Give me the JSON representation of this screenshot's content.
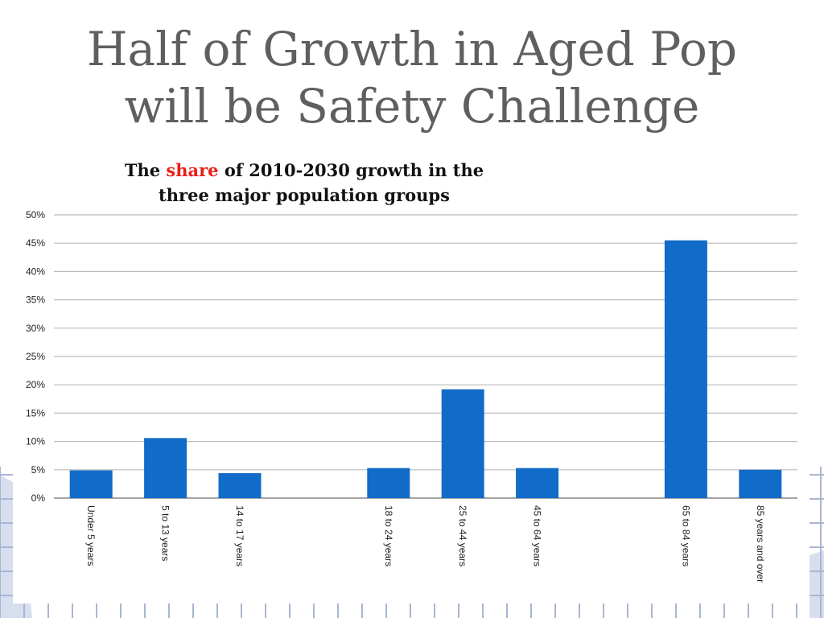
{
  "slide": {
    "title_line1": "Half of Growth in Aged Pop",
    "title_line2": "will be Safety Challenge"
  },
  "colors": {
    "bar": "#116bc9",
    "title_accent": "#e8201c",
    "background_grid": "#a9b6d3"
  },
  "chart_data": {
    "type": "bar",
    "title_parts": {
      "before": "The ",
      "accent": "share",
      "after": " of 2010-2030 growth in the",
      "line2": "three major population  groups"
    },
    "categories": [
      "Under 5 years",
      "5 to 13 years",
      "14 to 17 years",
      "",
      "18 to 24 years",
      "25 to 44 years",
      "45 to 64 years",
      "",
      "65 to 84 years",
      "85 years and over"
    ],
    "values": [
      4.9,
      10.6,
      4.4,
      null,
      5.3,
      19.2,
      5.3,
      null,
      45.5,
      5.0
    ],
    "ylim": [
      0,
      50
    ],
    "y_ticks": [
      0,
      5,
      10,
      15,
      20,
      25,
      30,
      35,
      40,
      45,
      50
    ],
    "y_tick_labels": [
      "0%",
      "5%",
      "10%",
      "15%",
      "20%",
      "25%",
      "30%",
      "35%",
      "40%",
      "45%",
      "50%"
    ],
    "xlabel": "",
    "ylabel": "",
    "grid": true,
    "legend": "none"
  }
}
